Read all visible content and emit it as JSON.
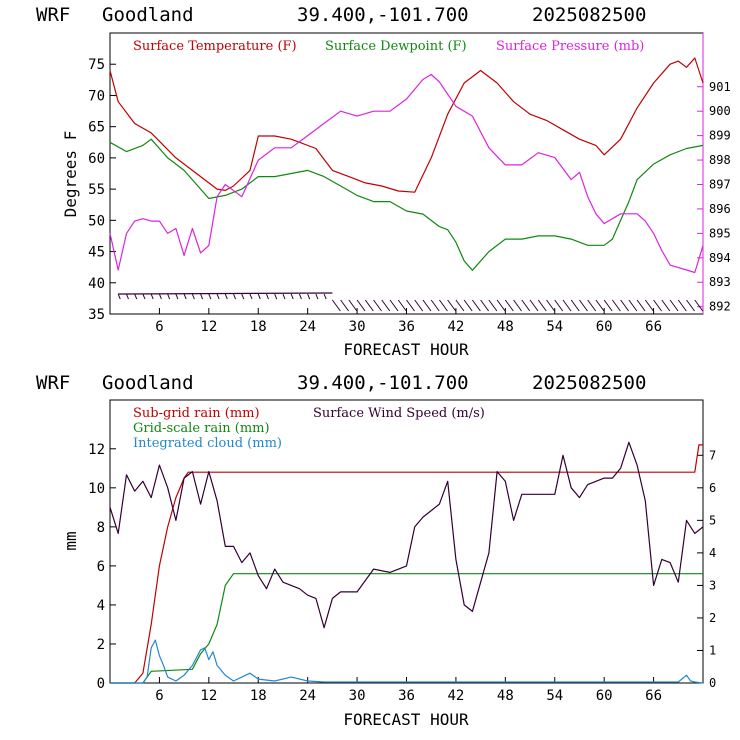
{
  "charts": [
    {
      "header": {
        "model": "WRF",
        "station": "Goodland",
        "coords": "39.400,-101.700",
        "date": "2025082500"
      },
      "xlabel": "FORECAST HOUR",
      "ylabel": "Degrees F",
      "legend": [
        "Surface Temperature (F)",
        "Surface Dewpoint (F)",
        "Surface Pressure (mb)"
      ]
    },
    {
      "header": {
        "model": "WRF",
        "station": "Goodland",
        "coords": "39.400,-101.700",
        "date": "2025082500"
      },
      "xlabel": "FORECAST HOUR",
      "ylabel": "mm",
      "legend": [
        "Sub-grid rain (mm)",
        "Grid-scale rain (mm)",
        "Integrated cloud (mm)",
        "Surface Wind Speed (m/s)"
      ]
    }
  ],
  "chart_data": [
    {
      "type": "line",
      "x_ticks": [
        6,
        12,
        18,
        24,
        30,
        36,
        42,
        48,
        54,
        60,
        66
      ],
      "xlim": [
        0,
        72
      ],
      "ylim": [
        35,
        80
      ],
      "y_ticks": [
        35,
        40,
        45,
        50,
        55,
        60,
        65,
        70,
        75
      ],
      "y2lim": [
        891.7,
        903.2
      ],
      "y2_ticks": [
        892,
        893,
        894,
        895,
        896,
        897,
        898,
        899,
        900,
        901
      ],
      "colors": {
        "temperature": "#c00000",
        "dewpoint": "#118811",
        "pressure": "#dd22dd",
        "wind": "#330033"
      },
      "series": [
        {
          "name": "Surface Temperature (F)",
          "axis": "left",
          "x": [
            0,
            1,
            3,
            5,
            8,
            11,
            13,
            14,
            15,
            17,
            18,
            20,
            22,
            25,
            27,
            29,
            31,
            33,
            35,
            37,
            39,
            41,
            43,
            45,
            47,
            49,
            51,
            53,
            55,
            57,
            59,
            60,
            62,
            64,
            66,
            68,
            69,
            70,
            71,
            72
          ],
          "y": [
            74,
            69,
            65.5,
            64,
            60,
            57,
            55,
            54.8,
            55.5,
            58,
            63.5,
            63.5,
            63,
            61.5,
            58,
            57,
            56,
            55.5,
            54.7,
            54.5,
            60,
            67,
            72,
            74,
            72,
            69,
            67,
            66,
            64.5,
            63,
            62,
            60.5,
            63,
            68,
            72,
            75,
            75.5,
            74.5,
            76,
            72
          ]
        },
        {
          "name": "Surface Dewpoint (F)",
          "axis": "left",
          "x": [
            0,
            2,
            4,
            5,
            7,
            9,
            11,
            12,
            14,
            16,
            18,
            20,
            22,
            24,
            26,
            28,
            30,
            32,
            34,
            36,
            38,
            40,
            41,
            42,
            43,
            44,
            46,
            48,
            50,
            52,
            54,
            56,
            58,
            60,
            61,
            62,
            63,
            64,
            66,
            68,
            70,
            72
          ],
          "y": [
            62.5,
            61,
            62,
            63,
            60,
            58,
            55,
            53.5,
            54,
            55,
            57,
            57,
            57.5,
            58,
            57,
            55.5,
            54,
            53,
            53,
            51.5,
            51,
            49,
            48.5,
            46.5,
            43.5,
            42,
            45,
            47,
            47,
            47.5,
            47.5,
            47,
            46,
            46,
            47,
            50,
            53,
            56.5,
            59,
            60.5,
            61.5,
            62
          ]
        },
        {
          "name": "Surface Pressure (mb)",
          "axis": "right",
          "x": [
            0,
            1,
            2,
            3,
            4,
            5,
            6,
            7,
            8,
            9,
            10,
            11,
            12,
            13,
            14,
            16,
            18,
            20,
            22,
            24,
            26,
            28,
            30,
            32,
            34,
            36,
            38,
            39,
            40,
            42,
            44,
            46,
            48,
            50,
            52,
            54,
            56,
            57,
            58,
            59,
            60,
            62,
            64,
            65,
            66,
            67,
            68,
            70,
            71,
            72
          ],
          "y": [
            895,
            893.5,
            895,
            895.5,
            895.6,
            895.5,
            895.5,
            895,
            895.2,
            894.1,
            895.2,
            894.2,
            894.5,
            896.5,
            897,
            896.5,
            898,
            898.5,
            898.5,
            899,
            899.5,
            900,
            899.8,
            900,
            900,
            900.5,
            901.3,
            901.5,
            901.2,
            900.2,
            899.8,
            898.5,
            897.8,
            897.8,
            898.3,
            898.1,
            897.2,
            897.5,
            896.5,
            895.8,
            895.4,
            895.8,
            895.8,
            895.5,
            895,
            894.3,
            893.7,
            893.5,
            893.4,
            894.5
          ]
        }
      ],
      "wind_barb_hours": [
        1,
        2,
        3,
        4,
        5,
        6,
        7,
        8,
        9,
        10,
        11,
        12,
        13,
        14,
        15,
        16,
        17,
        18,
        19,
        20,
        21,
        22,
        23,
        24,
        25,
        26,
        27,
        28,
        29,
        30,
        31,
        32,
        33,
        34,
        35,
        36,
        37,
        38,
        39,
        40,
        41,
        42,
        43,
        44,
        45,
        46,
        47,
        48,
        49,
        50,
        51,
        52,
        53,
        54,
        55,
        56,
        57,
        58,
        59,
        60,
        61,
        62,
        63,
        64,
        65,
        66,
        67,
        68,
        69,
        70,
        71
      ]
    },
    {
      "type": "line",
      "x_ticks": [
        6,
        12,
        18,
        24,
        30,
        36,
        42,
        48,
        54,
        60,
        66
      ],
      "xlim": [
        0,
        72
      ],
      "ylim": [
        0,
        14.5
      ],
      "y_ticks": [
        0,
        2,
        4,
        6,
        8,
        10,
        12
      ],
      "y2lim": [
        0,
        8.7
      ],
      "y2_ticks": [
        0,
        1,
        2,
        3,
        4,
        5,
        6,
        7
      ],
      "colors": {
        "subgrid": "#c00000",
        "gridscale": "#118811",
        "cloud": "#2288cc",
        "wind": "#330033"
      },
      "series": [
        {
          "name": "Sub-grid rain (mm)",
          "axis": "left",
          "x": [
            0,
            3,
            4,
            5,
            6,
            7,
            8,
            9,
            9.5,
            10,
            71,
            71.5,
            72
          ],
          "y": [
            0,
            0,
            0.5,
            3,
            6,
            8,
            9.5,
            10.5,
            10.8,
            10.8,
            10.8,
            12.2,
            12.2
          ]
        },
        {
          "name": "Grid-scale rain (mm)",
          "axis": "left",
          "x": [
            0,
            4,
            5,
            10,
            11,
            12,
            13,
            14,
            15,
            16,
            72
          ],
          "y": [
            0,
            0,
            0.6,
            0.7,
            1.5,
            2,
            3,
            5,
            5.6,
            5.6,
            5.6
          ]
        },
        {
          "name": "Integrated cloud (mm)",
          "axis": "left",
          "x": [
            0,
            4,
            4.5,
            5,
            5.5,
            6,
            6.5,
            7,
            8,
            9,
            10,
            11,
            11.5,
            12,
            12.5,
            13,
            14,
            15,
            16,
            17,
            18,
            20,
            22,
            24,
            26,
            30,
            40,
            50,
            60,
            69,
            70,
            70.5,
            71,
            72
          ],
          "y": [
            0,
            0,
            0.3,
            1.8,
            2.2,
            1.4,
            0.9,
            0.3,
            0.1,
            0.4,
            0.9,
            1.7,
            1.8,
            1.2,
            1.6,
            0.9,
            0.4,
            0.1,
            0.3,
            0.5,
            0.2,
            0.1,
            0.3,
            0.1,
            0.05,
            0.05,
            0.05,
            0.05,
            0.05,
            0.05,
            0.4,
            0.1,
            0.05,
            0
          ]
        },
        {
          "name": "Surface Wind Speed (m/s)",
          "axis": "right",
          "x": [
            0,
            1,
            2,
            3,
            4,
            5,
            6,
            7,
            8,
            9,
            10,
            11,
            12,
            13,
            14,
            15,
            16,
            17,
            18,
            19,
            20,
            21,
            22,
            23,
            24,
            25,
            26,
            27,
            28,
            30,
            32,
            34,
            36,
            37,
            38,
            39,
            40,
            41,
            42,
            43,
            44,
            46,
            47,
            48,
            49,
            50,
            52,
            54,
            55,
            56,
            57,
            58,
            60,
            61,
            62,
            63,
            64,
            65,
            66,
            67,
            68,
            69,
            70,
            71,
            72
          ],
          "y": [
            5.4,
            4.6,
            6.4,
            5.9,
            6.2,
            5.7,
            6.7,
            6.0,
            5.0,
            6.3,
            6.5,
            5.5,
            6.5,
            5.6,
            4.2,
            4.2,
            3.7,
            4.0,
            3.3,
            2.9,
            3.5,
            3.1,
            3.0,
            2.9,
            2.7,
            2.6,
            1.7,
            2.6,
            2.8,
            2.8,
            3.5,
            3.4,
            3.6,
            4.8,
            5.1,
            5.3,
            5.5,
            6.2,
            3.8,
            2.4,
            2.2,
            4.0,
            6.5,
            6.2,
            5.0,
            5.8,
            5.8,
            5.8,
            7.0,
            6.0,
            5.7,
            6.1,
            6.3,
            6.3,
            6.6,
            7.4,
            6.7,
            5.6,
            3.0,
            3.8,
            3.7,
            3.1,
            5.0,
            4.6,
            4.8
          ]
        }
      ]
    }
  ]
}
